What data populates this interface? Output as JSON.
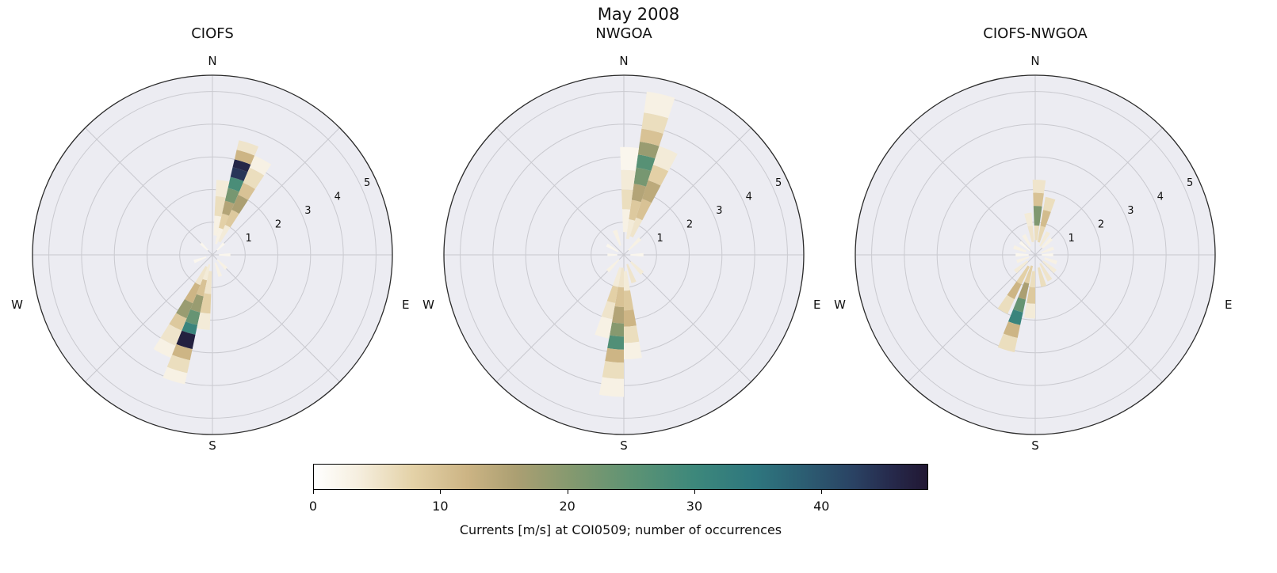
{
  "figure": {
    "title": "May 2008"
  },
  "chart_data": {
    "type": "polar_histogram_rose",
    "suptitle": "May 2008",
    "description": "Three current-rose polar histograms; radial axis is current speed [m/s] (rings 1-5), color is number of occurrences.",
    "direction_labels": [
      "N",
      "E",
      "S",
      "W"
    ],
    "radial_ticks": [
      1,
      2,
      3,
      4,
      5
    ],
    "radial_max": 5.5,
    "segment_format": [
      "direction_deg_from_north_clockwise",
      "petal_width_deg",
      "speed_inner_mps",
      "speed_outer_mps",
      "occurrences"
    ],
    "colorbar": {
      "label": "Currents [m/s] at COI0509; number of occurrences",
      "ticks": [
        0,
        10,
        20,
        30,
        40
      ],
      "range": [
        0,
        48.4
      ],
      "cmap_stops": [
        [
          0.0,
          "#ffffff"
        ],
        [
          0.07,
          "#f6efe0"
        ],
        [
          0.16,
          "#e4d2a8"
        ],
        [
          0.25,
          "#ccb484"
        ],
        [
          0.33,
          "#ab9f72"
        ],
        [
          0.42,
          "#84996f"
        ],
        [
          0.52,
          "#5d9374"
        ],
        [
          0.62,
          "#3d887b"
        ],
        [
          0.72,
          "#2e767e"
        ],
        [
          0.8,
          "#2c5d72"
        ],
        [
          0.88,
          "#2a4263"
        ],
        [
          0.94,
          "#262a4c"
        ],
        [
          1.0,
          "#211733"
        ]
      ]
    },
    "subplots": [
      {
        "title": "CIOFS",
        "segments": [
          [
            18,
            10,
            0.35,
            0.85,
            3
          ],
          [
            18,
            10,
            0.85,
            1.3,
            8
          ],
          [
            18,
            10,
            1.3,
            1.7,
            15
          ],
          [
            18,
            10,
            1.7,
            2.1,
            22
          ],
          [
            18,
            10,
            2.1,
            2.45,
            28
          ],
          [
            18,
            10,
            2.45,
            2.75,
            44
          ],
          [
            18,
            10,
            2.75,
            3.0,
            46
          ],
          [
            18,
            10,
            3.0,
            3.3,
            12
          ],
          [
            18,
            10,
            3.3,
            3.6,
            5
          ],
          [
            28,
            10,
            0.45,
            1.0,
            4
          ],
          [
            28,
            10,
            1.0,
            1.5,
            9
          ],
          [
            28,
            10,
            1.5,
            2.0,
            16
          ],
          [
            28,
            10,
            2.0,
            2.4,
            10
          ],
          [
            28,
            10,
            2.4,
            2.9,
            6
          ],
          [
            28,
            10,
            2.9,
            3.3,
            3
          ],
          [
            8,
            10,
            0.6,
            1.2,
            3
          ],
          [
            8,
            10,
            1.2,
            1.8,
            6
          ],
          [
            8,
            10,
            1.8,
            2.3,
            4
          ],
          [
            197,
            10,
            0.3,
            0.8,
            4
          ],
          [
            197,
            10,
            0.8,
            1.3,
            10
          ],
          [
            197,
            10,
            1.3,
            1.8,
            18
          ],
          [
            197,
            10,
            1.8,
            2.2,
            24
          ],
          [
            197,
            10,
            2.2,
            2.5,
            31
          ],
          [
            197,
            10,
            2.5,
            2.95,
            47
          ],
          [
            197,
            10,
            2.95,
            3.3,
            12
          ],
          [
            197,
            10,
            3.3,
            3.7,
            6
          ],
          [
            197,
            10,
            3.7,
            4.05,
            3
          ],
          [
            207,
            10,
            0.4,
            1.0,
            5
          ],
          [
            207,
            10,
            1.0,
            1.6,
            12
          ],
          [
            207,
            10,
            1.6,
            2.1,
            18
          ],
          [
            207,
            10,
            2.1,
            2.5,
            9
          ],
          [
            207,
            10,
            2.5,
            3.0,
            5
          ],
          [
            207,
            10,
            3.0,
            3.4,
            3
          ],
          [
            187,
            10,
            0.5,
            1.2,
            5
          ],
          [
            187,
            10,
            1.2,
            1.8,
            8
          ],
          [
            187,
            10,
            1.8,
            2.3,
            4
          ],
          [
            45,
            10,
            0.2,
            0.5,
            2
          ],
          [
            90,
            10,
            0.2,
            0.55,
            2
          ],
          [
            135,
            10,
            0.2,
            0.6,
            3
          ],
          [
            160,
            10,
            0.25,
            0.7,
            3
          ],
          [
            250,
            10,
            0.2,
            0.6,
            2
          ],
          [
            315,
            10,
            0.2,
            0.5,
            2
          ]
        ]
      },
      {
        "title": "NWGOA",
        "segments": [
          [
            13,
            10,
            0.5,
            1.1,
            4
          ],
          [
            13,
            10,
            1.1,
            1.7,
            9
          ],
          [
            13,
            10,
            1.7,
            2.2,
            15
          ],
          [
            13,
            10,
            2.2,
            2.7,
            22
          ],
          [
            13,
            10,
            2.7,
            3.1,
            26
          ],
          [
            13,
            10,
            3.1,
            3.5,
            18
          ],
          [
            13,
            10,
            3.5,
            3.9,
            10
          ],
          [
            13,
            10,
            3.9,
            4.4,
            6
          ],
          [
            13,
            10,
            4.4,
            5.05,
            3
          ],
          [
            23,
            10,
            0.6,
            1.2,
            5
          ],
          [
            23,
            10,
            1.2,
            1.8,
            10
          ],
          [
            23,
            10,
            1.8,
            2.4,
            14
          ],
          [
            23,
            10,
            2.4,
            2.9,
            8
          ],
          [
            23,
            10,
            2.9,
            3.5,
            4
          ],
          [
            3,
            10,
            0.7,
            1.4,
            3
          ],
          [
            3,
            10,
            1.4,
            2.0,
            6
          ],
          [
            3,
            10,
            2.0,
            2.6,
            4
          ],
          [
            3,
            10,
            2.6,
            3.3,
            2
          ],
          [
            185,
            10,
            0.4,
            1.0,
            5
          ],
          [
            185,
            10,
            1.0,
            1.6,
            10
          ],
          [
            185,
            10,
            1.6,
            2.1,
            15
          ],
          [
            185,
            10,
            2.1,
            2.5,
            20
          ],
          [
            185,
            10,
            2.5,
            2.9,
            27
          ],
          [
            185,
            10,
            2.9,
            3.3,
            12
          ],
          [
            185,
            10,
            3.3,
            3.8,
            6
          ],
          [
            185,
            10,
            3.8,
            4.35,
            3
          ],
          [
            175,
            10,
            0.5,
            1.1,
            4
          ],
          [
            175,
            10,
            1.1,
            1.7,
            9
          ],
          [
            175,
            10,
            1.7,
            2.2,
            12
          ],
          [
            175,
            10,
            2.2,
            2.7,
            6
          ],
          [
            175,
            10,
            2.7,
            3.2,
            3
          ],
          [
            195,
            10,
            0.4,
            1.0,
            4
          ],
          [
            195,
            10,
            1.0,
            1.5,
            8
          ],
          [
            195,
            10,
            1.5,
            2.0,
            5
          ],
          [
            195,
            10,
            2.0,
            2.6,
            3
          ],
          [
            45,
            10,
            0.2,
            0.7,
            3
          ],
          [
            90,
            10,
            0.2,
            0.6,
            2
          ],
          [
            135,
            10,
            0.3,
            0.8,
            4
          ],
          [
            160,
            10,
            0.3,
            0.9,
            5
          ],
          [
            225,
            10,
            0.2,
            0.7,
            3
          ],
          [
            270,
            10,
            0.2,
            0.5,
            2
          ],
          [
            300,
            10,
            0.2,
            0.6,
            2
          ],
          [
            340,
            10,
            0.3,
            0.8,
            3
          ]
        ]
      },
      {
        "title": "CIOFS-NWGOA",
        "segments": [
          [
            3,
            10,
            0.45,
            0.9,
            6
          ],
          [
            3,
            10,
            0.9,
            1.5,
            21
          ],
          [
            3,
            10,
            1.5,
            1.9,
            10
          ],
          [
            3,
            10,
            1.9,
            2.3,
            5
          ],
          [
            15,
            10,
            0.4,
            0.9,
            7
          ],
          [
            15,
            10,
            0.9,
            1.4,
            11
          ],
          [
            15,
            10,
            1.4,
            1.8,
            6
          ],
          [
            350,
            10,
            0.4,
            0.9,
            5
          ],
          [
            350,
            10,
            0.9,
            1.3,
            4
          ],
          [
            197,
            10,
            0.35,
            0.9,
            8
          ],
          [
            197,
            10,
            0.9,
            1.4,
            16
          ],
          [
            197,
            10,
            1.4,
            1.8,
            24
          ],
          [
            197,
            10,
            1.8,
            2.2,
            31
          ],
          [
            197,
            10,
            2.2,
            2.6,
            12
          ],
          [
            197,
            10,
            2.6,
            3.05,
            6
          ],
          [
            210,
            10,
            0.4,
            1.0,
            8
          ],
          [
            210,
            10,
            1.0,
            1.5,
            12
          ],
          [
            210,
            10,
            1.5,
            2.0,
            6
          ],
          [
            185,
            10,
            0.5,
            1.0,
            6
          ],
          [
            185,
            10,
            1.0,
            1.5,
            9
          ],
          [
            185,
            10,
            1.5,
            1.95,
            4
          ],
          [
            30,
            10,
            0.3,
            0.8,
            4
          ],
          [
            45,
            10,
            0.3,
            0.7,
            3
          ],
          [
            70,
            10,
            0.2,
            0.6,
            3
          ],
          [
            90,
            10,
            0.2,
            0.55,
            2
          ],
          [
            110,
            10,
            0.3,
            0.7,
            3
          ],
          [
            130,
            10,
            0.3,
            0.8,
            4
          ],
          [
            150,
            10,
            0.3,
            0.9,
            5
          ],
          [
            165,
            10,
            0.4,
            1.0,
            6
          ],
          [
            230,
            10,
            0.3,
            0.8,
            4
          ],
          [
            250,
            10,
            0.2,
            0.6,
            3
          ],
          [
            270,
            10,
            0.2,
            0.6,
            2
          ],
          [
            290,
            10,
            0.3,
            0.7,
            3
          ],
          [
            310,
            10,
            0.2,
            0.6,
            2
          ],
          [
            330,
            10,
            0.3,
            0.7,
            3
          ]
        ]
      }
    ]
  }
}
